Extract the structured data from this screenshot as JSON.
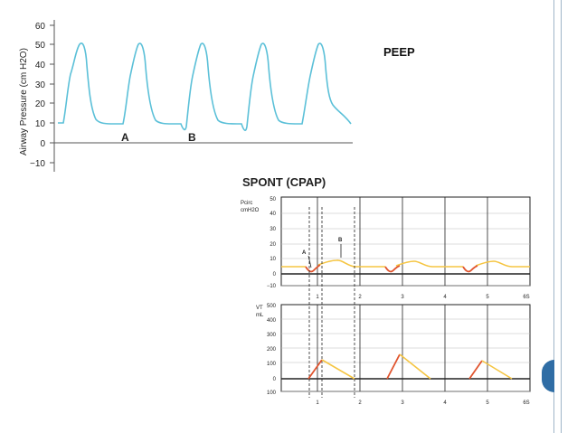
{
  "slide": {
    "label": "PEEP",
    "accent_color": "#2f6da5"
  },
  "top_chart": {
    "ylabel": "Airway Pressure (cm H2O)",
    "yticks": [
      "60",
      "50",
      "40",
      "30",
      "20",
      "10",
      "0",
      "−10"
    ],
    "marker_a": "A",
    "marker_b": "B",
    "line_color": "#5bc0d8"
  },
  "bottom_figure": {
    "title": "SPONT (CPAP)",
    "pressure_label_line1": "Pcirc",
    "pressure_label_line2": "cmH2O",
    "pressure_yticks": [
      "50",
      "40",
      "30",
      "20",
      "10",
      "0",
      "−10"
    ],
    "marker_a": "A",
    "marker_b": "B",
    "x_ticks_upper": [
      "1",
      "2",
      "3",
      "4",
      "5",
      "6S"
    ],
    "volume_label_line1": "VT",
    "volume_label_line2": "mL",
    "volume_yticks": [
      "500",
      "400",
      "300",
      "200",
      "100",
      "0",
      "100"
    ],
    "x_ticks_lower": [
      "1",
      "2",
      "3",
      "4",
      "5",
      "6S"
    ],
    "baseline_color": "#f5c542",
    "effort_color": "#e0542e",
    "expiration_color": "#f5c542"
  }
}
